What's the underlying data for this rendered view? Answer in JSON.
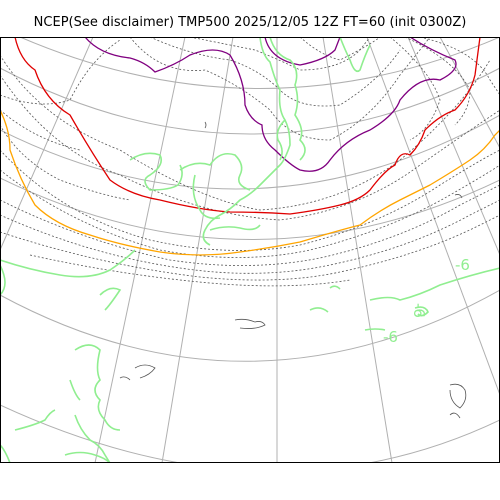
{
  "title": "NCEP(See disclaimer) TMP500 2025/12/05 12Z FT=60 (init 0300Z)",
  "colors": {
    "background": "#ffffff",
    "graticule": "#b0b0b0",
    "coastline": "#90ee90",
    "isotherm_dashed": "#555555",
    "purple_isotherm": "#800080",
    "red_isotherm": "#e00000",
    "orange_isotherm": "#ffa500",
    "contour_label": "#90ee90"
  },
  "contour_labels": [
    "-6",
    "-6",
    "-6"
  ]
}
